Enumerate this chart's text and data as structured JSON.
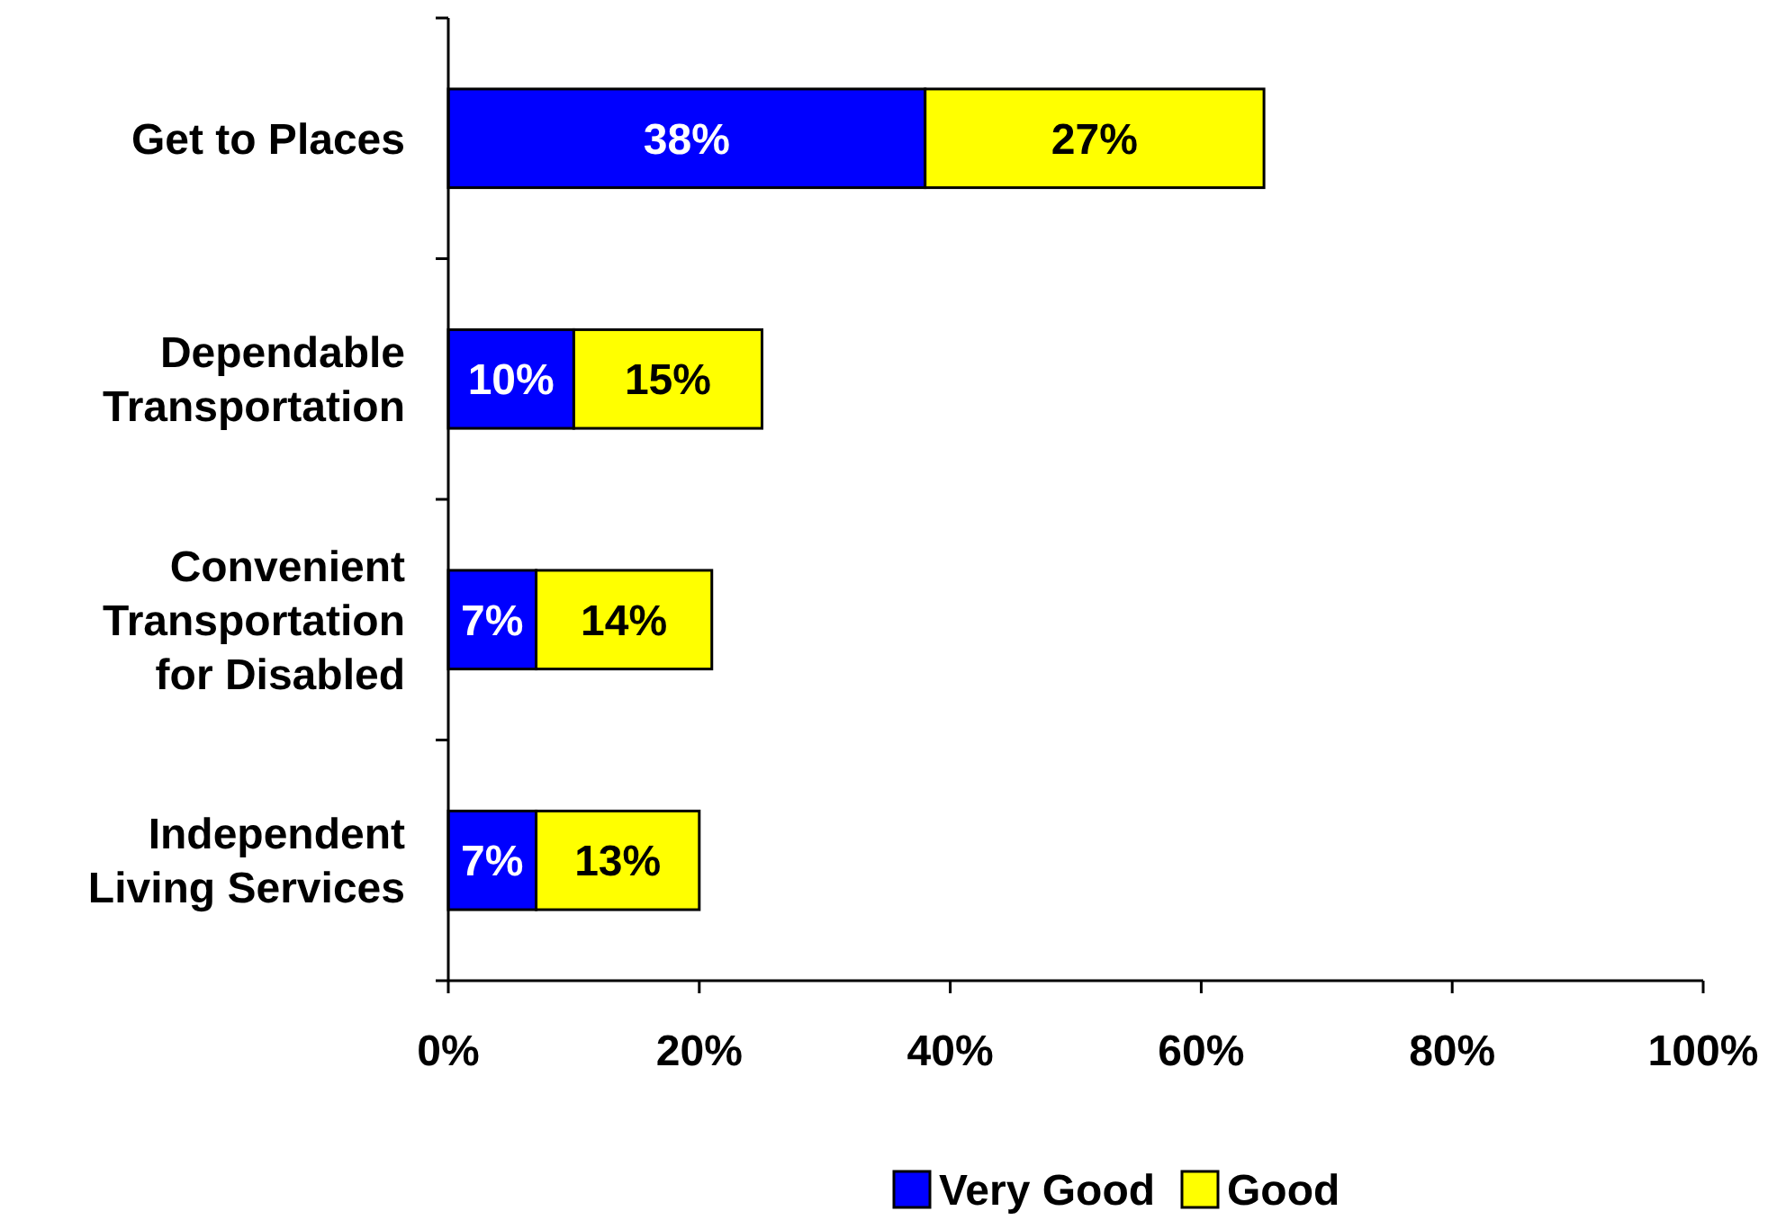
{
  "chart_data": {
    "type": "bar",
    "orientation": "horizontal",
    "stacked": true,
    "categories": [
      "Get to Places",
      "Dependable Transportation",
      "Convenient Transportation for Disabled",
      "Independent Living Services"
    ],
    "series": [
      {
        "name": "Very Good",
        "color": "#0000ff",
        "values": [
          38,
          10,
          7,
          7
        ],
        "value_labels": [
          "38%",
          "10%",
          "7%",
          "7%"
        ]
      },
      {
        "name": "Good",
        "color": "#ffff00",
        "values": [
          27,
          15,
          14,
          13
        ],
        "value_labels": [
          "27%",
          "15%",
          "14%",
          "13%"
        ]
      }
    ],
    "xlim": [
      0,
      100
    ],
    "xticks": [
      {
        "value": 0,
        "label": "0%"
      },
      {
        "value": 20,
        "label": "20%"
      },
      {
        "value": 40,
        "label": "40%"
      },
      {
        "value": 60,
        "label": "60%"
      },
      {
        "value": 80,
        "label": "80%"
      },
      {
        "value": 100,
        "label": "100%"
      }
    ],
    "grid": false,
    "legend": "bottom"
  }
}
